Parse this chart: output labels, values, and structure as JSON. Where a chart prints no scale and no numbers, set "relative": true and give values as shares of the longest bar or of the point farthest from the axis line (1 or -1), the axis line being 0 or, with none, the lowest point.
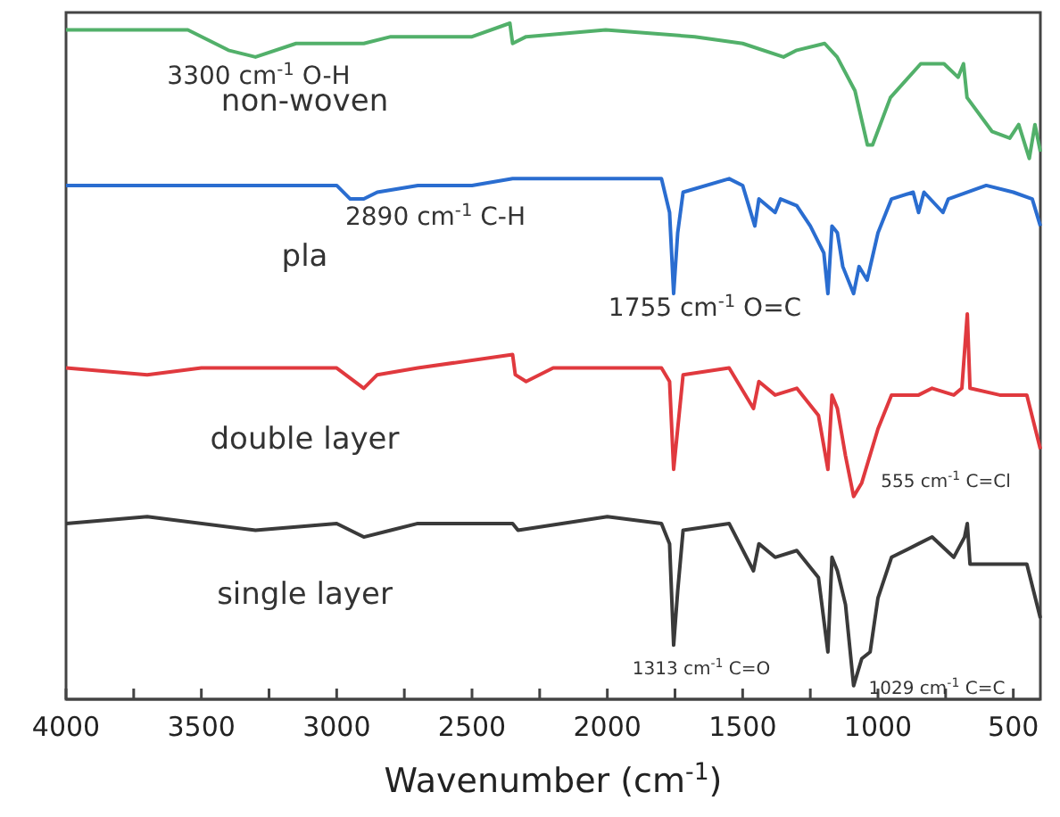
{
  "chart_data": {
    "type": "line",
    "relative": true,
    "xlabel": "Wavenumber (cm$^{-1}$)",
    "xlim": [
      4000,
      400
    ],
    "xticks": [
      4000,
      {
        "value": 3750,
        "label": null
      },
      3500,
      {
        "value": 3250,
        "label": null
      },
      3000,
      {
        "value": 2750,
        "label": null
      },
      2500,
      {
        "value": 2250,
        "label": null
      },
      2000,
      {
        "value": 1750,
        "label": null
      },
      1500,
      {
        "value": 1250,
        "label": null
      },
      1000,
      {
        "value": 750,
        "label": null
      },
      500
    ],
    "tick_labels": "x",
    "grid": false,
    "legend": false,
    "marker": "none",
    "line_style": "solid",
    "series": [
      {
        "name": "non-woven",
        "color": "#52b06a",
        "x": [
          4000,
          3700,
          3550,
          3400,
          3300,
          3150,
          3000,
          2900,
          2800,
          2500,
          2360,
          2350,
          2300,
          2006,
          1677,
          1500,
          1349,
          1300,
          1197,
          1151,
          1085,
          1039,
          1020,
          954,
          842,
          756,
          704,
          684,
          671,
          579,
          513,
          480,
          441,
          420,
          400
        ],
        "values": [
          0.99,
          0.99,
          0.99,
          0.96,
          0.95,
          0.97,
          0.97,
          0.97,
          0.98,
          0.98,
          1.0,
          0.97,
          0.98,
          0.99,
          0.98,
          0.97,
          0.95,
          0.96,
          0.97,
          0.95,
          0.9,
          0.82,
          0.82,
          0.89,
          0.94,
          0.94,
          0.92,
          0.94,
          0.89,
          0.84,
          0.83,
          0.85,
          0.8,
          0.85,
          0.81
        ]
      },
      {
        "name": "pla",
        "color": "#2a6dd0",
        "x": [
          4000,
          3500,
          3000,
          2950,
          2900,
          2850,
          2700,
          2500,
          2350,
          2000,
          1800,
          1770,
          1755,
          1740,
          1720,
          1550,
          1500,
          1455,
          1440,
          1380,
          1360,
          1300,
          1250,
          1200,
          1185,
          1170,
          1150,
          1130,
          1090,
          1070,
          1040,
          1000,
          950,
          870,
          850,
          830,
          760,
          740,
          600,
          500,
          430,
          400
        ],
        "values": [
          0.76,
          0.76,
          0.76,
          0.74,
          0.74,
          0.75,
          0.76,
          0.76,
          0.77,
          0.77,
          0.77,
          0.72,
          0.6,
          0.69,
          0.75,
          0.77,
          0.76,
          0.7,
          0.74,
          0.72,
          0.74,
          0.73,
          0.7,
          0.66,
          0.6,
          0.7,
          0.69,
          0.64,
          0.6,
          0.64,
          0.62,
          0.69,
          0.74,
          0.75,
          0.72,
          0.75,
          0.72,
          0.74,
          0.76,
          0.75,
          0.74,
          0.7
        ]
      },
      {
        "name": "double layer",
        "color": "#e0393e",
        "x": [
          4000,
          3700,
          3500,
          3300,
          3000,
          2900,
          2850,
          2700,
          2350,
          2340,
          2300,
          2200,
          2000,
          1800,
          1770,
          1755,
          1740,
          1720,
          1550,
          1460,
          1440,
          1380,
          1300,
          1220,
          1185,
          1170,
          1150,
          1120,
          1090,
          1060,
          1000,
          950,
          850,
          800,
          720,
          690,
          670,
          660,
          550,
          450,
          400
        ],
        "values": [
          0.49,
          0.48,
          0.49,
          0.49,
          0.49,
          0.46,
          0.48,
          0.49,
          0.51,
          0.48,
          0.47,
          0.49,
          0.49,
          0.49,
          0.47,
          0.34,
          0.4,
          0.48,
          0.49,
          0.43,
          0.47,
          0.45,
          0.46,
          0.42,
          0.34,
          0.45,
          0.43,
          0.36,
          0.3,
          0.32,
          0.4,
          0.45,
          0.45,
          0.46,
          0.45,
          0.46,
          0.57,
          0.46,
          0.45,
          0.45,
          0.37
        ]
      },
      {
        "name": "single layer",
        "color": "#3a3a3a",
        "x": [
          4000,
          3700,
          3300,
          3000,
          2900,
          2800,
          2700,
          2350,
          2330,
          2000,
          1800,
          1770,
          1755,
          1740,
          1720,
          1550,
          1460,
          1440,
          1380,
          1300,
          1220,
          1185,
          1170,
          1150,
          1120,
          1090,
          1060,
          1029,
          1000,
          950,
          850,
          800,
          720,
          680,
          670,
          660,
          550,
          450,
          400
        ],
        "values": [
          0.26,
          0.27,
          0.25,
          0.26,
          0.24,
          0.25,
          0.26,
          0.26,
          0.25,
          0.27,
          0.26,
          0.23,
          0.08,
          0.16,
          0.25,
          0.26,
          0.19,
          0.23,
          0.21,
          0.22,
          0.18,
          0.07,
          0.21,
          0.19,
          0.14,
          0.02,
          0.06,
          0.07,
          0.15,
          0.21,
          0.23,
          0.24,
          0.21,
          0.24,
          0.26,
          0.2,
          0.2,
          0.2,
          0.12
        ]
      }
    ],
    "annotations": [
      "3300 cm$^{-1}$ O-H",
      "2890 cm$^{-1}$ C-H",
      "1755 cm$^{-1}$ O=C",
      "555  cm$^{-1}$ C=Cl",
      "1313  cm$^{-1}$ C=O",
      "1029  cm$^{-1}$ C=C"
    ]
  }
}
